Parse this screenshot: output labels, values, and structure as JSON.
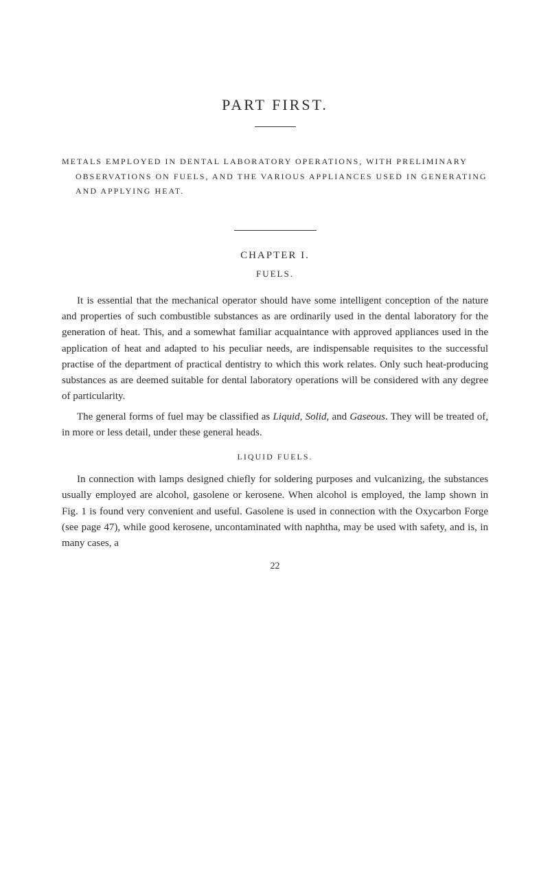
{
  "partTitle": "PART FIRST.",
  "subtitle": "METALS EMPLOYED IN DENTAL LABORATORY OPERATIONS, WITH PRELIMINARY OBSERVATIONS ON FUELS, AND THE VARIOUS APPLIANCES USED IN GENERATING AND APPLYING HEAT.",
  "chapterHeading": "CHAPTER I.",
  "fuelsHeading": "FUELS.",
  "para1a": "It is essential that the mechanical operator should have some intelligent conception of the nature and properties of such combustible substances as are ordinarily used in the dental laboratory for the generation of heat. This, and a somewhat familiar acquaintance with approved appliances used in the application of heat and adapted to his peculiar needs, are indispensable requisites to the successful practise of the department of practical dentistry to which this work relates. Only such heat-producing substances as are deemed suitable for dental laboratory operations will be considered with any degree of particularity.",
  "para2_pre": "The general forms of fuel may be classified as ",
  "para2_i1": "Liquid",
  "para2_mid1": ", ",
  "para2_i2": "Solid",
  "para2_mid2": ", and ",
  "para2_i3": "Gaseous",
  "para2_post": ". They will be treated of, in more or less detail, under these general heads.",
  "liquidHeading": "LIQUID FUELS.",
  "para3": "In connection with lamps designed chiefly for soldering purposes and vulcanizing, the substances usually employed are alcohol, gasolene or kerosene. When alcohol is employed, the lamp shown in Fig. 1 is found very convenient and useful. Gasolene is used in connection with the Oxycarbon Forge (see page 47), while good kerosene, uncontaminated with naphtha, may be used with safety, and is, in many cases, a",
  "pageNum": "22"
}
